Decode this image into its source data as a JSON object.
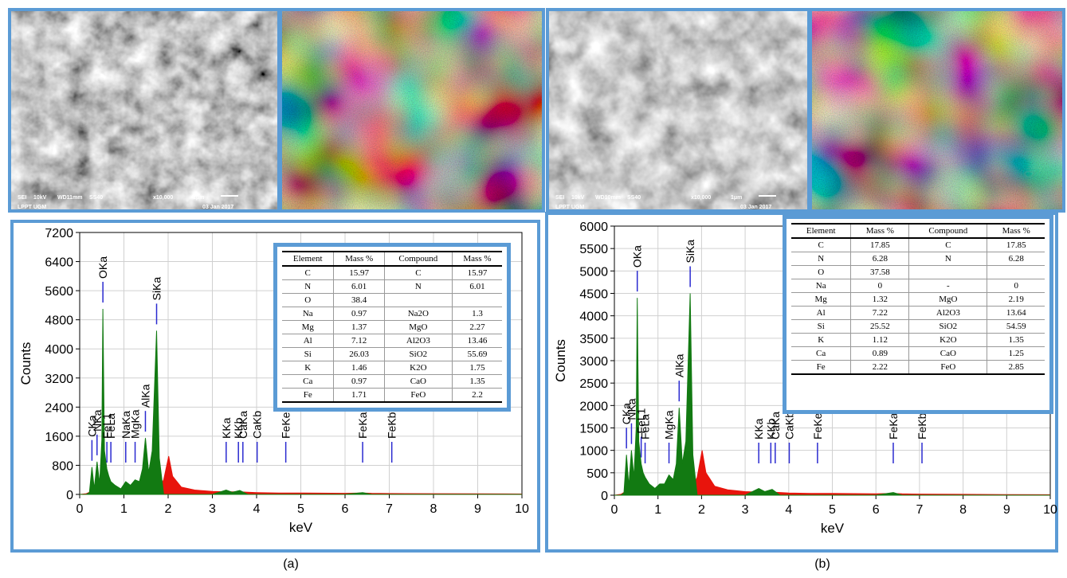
{
  "images": [
    {
      "labels": [
        "SEI",
        "10kV",
        "WD11mm",
        "SS40",
        "x10,000",
        "1μm",
        "03 Jan 2017",
        "LPPT UGM"
      ]
    },
    {
      "labels": [
        "SEI",
        "10kV",
        "WD10mm",
        "SS40",
        "x10,000",
        "1μm",
        "03 Jan 2017",
        "LPPT UGM"
      ]
    }
  ],
  "chart_data": [
    {
      "type": "area",
      "caption": "(a)",
      "xlabel": "keV",
      "ylabel": "Counts",
      "grid": true,
      "xlim": [
        0,
        10
      ],
      "xticks": [
        0,
        1,
        2,
        3,
        4,
        5,
        6,
        7,
        8,
        9,
        10
      ],
      "ylim": [
        0,
        7200
      ],
      "yticks": [
        0,
        800,
        1600,
        2400,
        3200,
        4000,
        4800,
        5600,
        6400,
        7200
      ],
      "x": [
        0,
        0.15,
        0.22,
        0.277,
        0.33,
        0.392,
        0.45,
        0.5,
        0.525,
        0.56,
        0.615,
        0.66,
        0.705,
        0.8,
        0.93,
        1.041,
        1.15,
        1.253,
        1.35,
        1.42,
        1.486,
        1.56,
        1.64,
        1.739,
        1.8,
        1.9,
        2.013,
        2.1,
        2.3,
        2.6,
        3.0,
        3.312,
        3.45,
        3.62,
        3.8,
        4.0,
        4.5,
        5,
        6,
        6.398,
        6.6,
        7,
        8,
        9,
        10
      ],
      "series": [
        {
          "color": "#e8140c",
          "values": [
            0,
            20,
            60,
            100,
            100,
            100,
            100,
            100,
            100,
            100,
            100,
            100,
            100,
            100,
            100,
            100,
            100,
            100,
            100,
            100,
            100,
            100,
            100,
            150,
            200,
            400,
            1050,
            500,
            200,
            120,
            80,
            70,
            70,
            70,
            60,
            50,
            40,
            40,
            30,
            40,
            30,
            25,
            20,
            15,
            10
          ]
        },
        {
          "color": "#127a12",
          "values": [
            0,
            0,
            50,
            750,
            150,
            900,
            300,
            1500,
            5100,
            1200,
            700,
            500,
            350,
            250,
            150,
            350,
            250,
            400,
            350,
            700,
            1550,
            600,
            1200,
            4500,
            1000,
            0,
            0,
            0,
            0,
            0,
            0,
            120,
            60,
            110,
            0,
            0,
            0,
            0,
            0,
            50,
            0,
            0,
            0,
            0,
            0
          ]
        }
      ],
      "peaks": [
        {
          "label": "CKa",
          "x": 0.277
        },
        {
          "label": "NKa",
          "x": 0.392
        },
        {
          "label": "OKa",
          "x": 0.525
        },
        {
          "label": "FeL1",
          "x": 0.615
        },
        {
          "label": "FeLa",
          "x": 0.705
        },
        {
          "label": "NaKa",
          "x": 1.041
        },
        {
          "label": "MgKa",
          "x": 1.253
        },
        {
          "label": "AlKa",
          "x": 1.486
        },
        {
          "label": "SiKa",
          "x": 1.739
        },
        {
          "label": "KKa",
          "x": 3.312
        },
        {
          "label": "KKb",
          "x": 3.589
        },
        {
          "label": "CaKa",
          "x": 3.69
        },
        {
          "label": "CaKb",
          "x": 4.012
        },
        {
          "label": "FeKesc",
          "x": 4.66
        },
        {
          "label": "FeKa",
          "x": 6.398
        },
        {
          "label": "FeKb",
          "x": 7.057
        }
      ],
      "table": {
        "header": [
          "Element",
          "Mass %",
          "Compound",
          "Mass %"
        ],
        "rows": [
          [
            "C",
            15.97,
            "C",
            15.97
          ],
          [
            "N",
            6.01,
            "N",
            6.01
          ],
          [
            "O",
            38.4,
            null,
            null
          ],
          [
            "Na",
            0.97,
            "Na2O",
            1.3
          ],
          [
            "Mg",
            1.37,
            "MgO",
            2.27
          ],
          [
            "Al",
            7.12,
            "Al2O3",
            13.46
          ],
          [
            "Si",
            26.03,
            "SiO2",
            55.69
          ],
          [
            "K",
            1.46,
            "K2O",
            1.75
          ],
          [
            "Ca",
            0.97,
            "CaO",
            1.35
          ],
          [
            "Fe",
            1.71,
            "FeO",
            2.2
          ]
        ]
      }
    },
    {
      "type": "area",
      "caption": "(b)",
      "xlabel": "keV",
      "ylabel": "Counts",
      "grid": true,
      "xlim": [
        0,
        10
      ],
      "xticks": [
        0,
        1,
        2,
        3,
        4,
        5,
        6,
        7,
        8,
        9,
        10
      ],
      "ylim": [
        0,
        6000
      ],
      "yticks": [
        0,
        500,
        1000,
        1500,
        2000,
        2500,
        3000,
        3500,
        4000,
        4500,
        5000,
        5500,
        6000
      ],
      "x": [
        0,
        0.15,
        0.22,
        0.277,
        0.33,
        0.392,
        0.45,
        0.5,
        0.525,
        0.56,
        0.615,
        0.66,
        0.705,
        0.8,
        0.93,
        1.041,
        1.15,
        1.253,
        1.35,
        1.42,
        1.486,
        1.56,
        1.64,
        1.739,
        1.8,
        1.9,
        2.013,
        2.1,
        2.3,
        2.6,
        3.0,
        3.312,
        3.45,
        3.62,
        3.8,
        4.0,
        4.5,
        5,
        6,
        6.398,
        6.6,
        7,
        8,
        9,
        10
      ],
      "series": [
        {
          "color": "#e8140c",
          "values": [
            0,
            20,
            60,
            100,
            100,
            100,
            100,
            100,
            100,
            100,
            100,
            100,
            100,
            100,
            100,
            100,
            100,
            100,
            100,
            100,
            100,
            100,
            100,
            150,
            200,
            400,
            1000,
            500,
            200,
            120,
            80,
            70,
            70,
            70,
            60,
            50,
            40,
            40,
            30,
            40,
            30,
            25,
            20,
            15,
            10
          ]
        },
        {
          "color": "#127a12",
          "values": [
            0,
            0,
            50,
            900,
            200,
            1000,
            400,
            1500,
            4400,
            1200,
            700,
            500,
            400,
            250,
            150,
            250,
            250,
            450,
            350,
            700,
            1950,
            700,
            1200,
            4500,
            900,
            0,
            0,
            0,
            0,
            0,
            0,
            150,
            80,
            130,
            0,
            0,
            0,
            0,
            0,
            60,
            0,
            0,
            0,
            0,
            0
          ]
        }
      ],
      "peaks": [
        {
          "label": "CKa",
          "x": 0.277
        },
        {
          "label": "NKa",
          "x": 0.392
        },
        {
          "label": "OKa",
          "x": 0.525
        },
        {
          "label": "FeL1",
          "x": 0.615
        },
        {
          "label": "FeLa",
          "x": 0.705
        },
        {
          "label": "MgKa",
          "x": 1.253
        },
        {
          "label": "AlKa",
          "x": 1.486
        },
        {
          "label": "SiKa",
          "x": 1.739
        },
        {
          "label": "KKa",
          "x": 3.312
        },
        {
          "label": "KKb",
          "x": 3.589
        },
        {
          "label": "CaKa",
          "x": 3.69
        },
        {
          "label": "CaKb",
          "x": 4.012
        },
        {
          "label": "FeKesc",
          "x": 4.66
        },
        {
          "label": "FeKa",
          "x": 6.398
        },
        {
          "label": "FeKb",
          "x": 7.057
        }
      ],
      "table": {
        "header": [
          "Element",
          "Mass %",
          "Compound",
          "Mass %"
        ],
        "rows": [
          [
            "C",
            17.85,
            "C",
            17.85
          ],
          [
            "N",
            6.28,
            "N",
            6.28
          ],
          [
            "O",
            37.58,
            null,
            null
          ],
          [
            "Na",
            0,
            "-",
            0
          ],
          [
            "Mg",
            1.32,
            "MgO",
            2.19
          ],
          [
            "Al",
            7.22,
            "Al2O3",
            13.64
          ],
          [
            "Si",
            25.52,
            "SiO2",
            54.59
          ],
          [
            "K",
            1.12,
            "K2O",
            1.35
          ],
          [
            "Ca",
            0.89,
            "CaO",
            1.25
          ],
          [
            "Fe",
            2.22,
            "FeO",
            2.85
          ]
        ]
      }
    }
  ]
}
